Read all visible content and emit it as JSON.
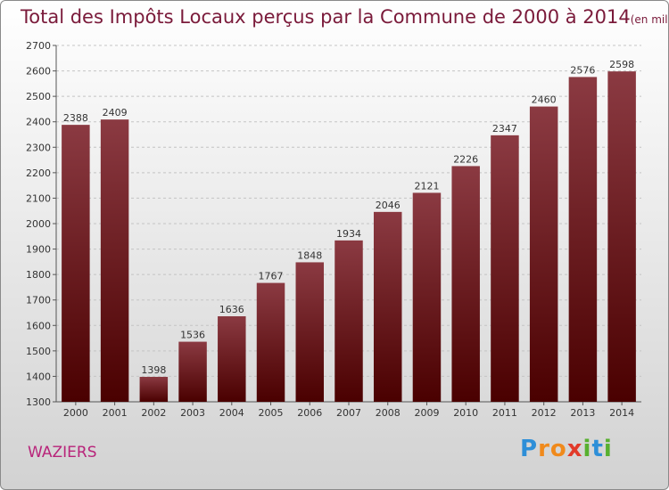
{
  "title": "Total des Impôts Locaux perçus par la Commune de 2000 à 2014",
  "unit": "(en milliers d'€)",
  "commune": "WAZIERS",
  "logo": {
    "letters": [
      "P",
      "r",
      "o",
      "x",
      "i",
      "t",
      "i"
    ],
    "colors": [
      "#2e8fd8",
      "#f08a1c",
      "#f08a1c",
      "#e23a2a",
      "#58b030",
      "#2e8fd8",
      "#58b030"
    ]
  },
  "chart_data": {
    "type": "bar",
    "title": "Total des Impôts Locaux perçus par la Commune de 2000 à 2014",
    "xlabel": "",
    "ylabel": "",
    "categories": [
      "2000",
      "2001",
      "2002",
      "2003",
      "2004",
      "2005",
      "2006",
      "2007",
      "2008",
      "2009",
      "2010",
      "2011",
      "2012",
      "2013",
      "2014"
    ],
    "values": [
      2388,
      2409,
      1398,
      1536,
      1636,
      1767,
      1848,
      1934,
      2046,
      2121,
      2226,
      2347,
      2460,
      2576,
      2598
    ],
    "ylim": [
      1300,
      2700
    ],
    "yticks": [
      1300,
      1400,
      1500,
      1600,
      1700,
      1800,
      1900,
      2000,
      2100,
      2200,
      2300,
      2400,
      2500,
      2600,
      2700
    ],
    "grid": true,
    "bar_color_top": "#8b3a42",
    "bar_color_bottom": "#4a0000"
  }
}
